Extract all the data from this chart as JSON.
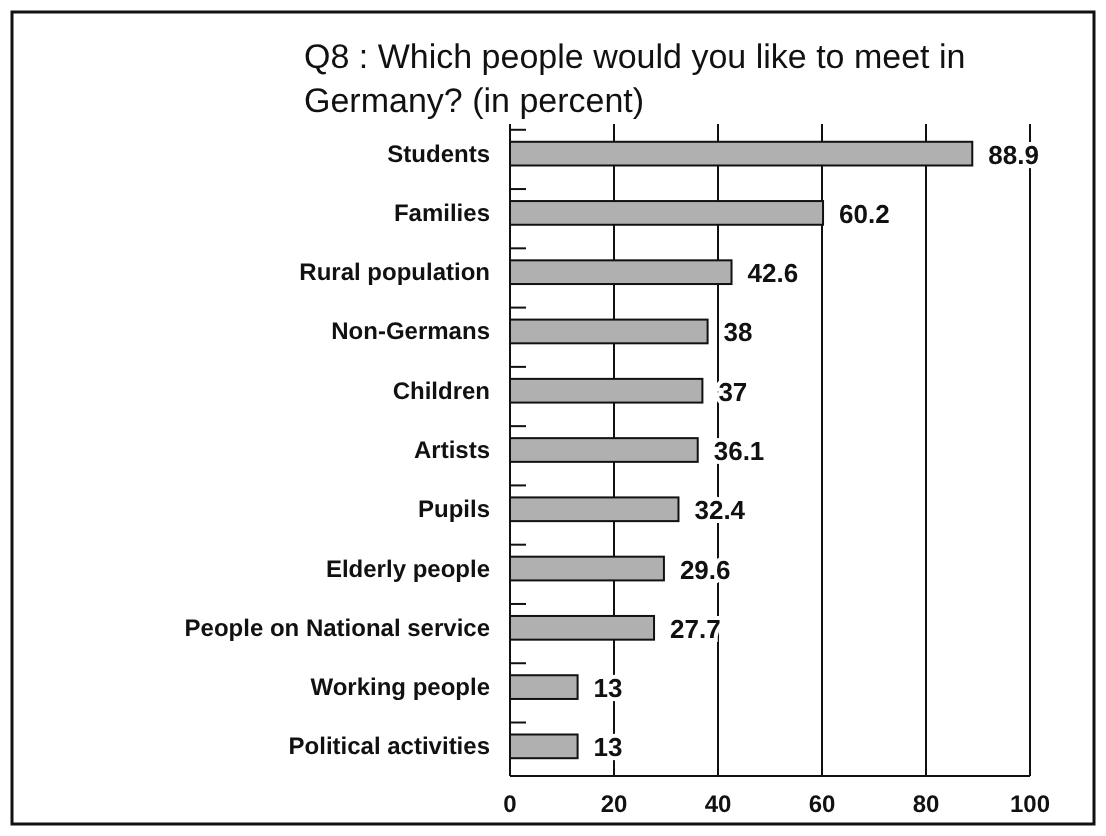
{
  "chart_data": {
    "type": "bar",
    "orientation": "horizontal",
    "title": "Q8 : Which people would you like to meet in Germany? (in percent)",
    "categories": [
      "Students",
      "Families",
      "Rural population",
      "Non-Germans",
      "Children",
      "Artists",
      "Pupils",
      "Elderly people",
      "People on National service",
      "Working people",
      "Political activities"
    ],
    "values": [
      88.9,
      60.2,
      42.6,
      38,
      37,
      36.1,
      32.4,
      29.6,
      27.7,
      13,
      13
    ],
    "color": "#b0b0b0",
    "xlim": [
      0,
      100
    ],
    "xticks": [
      0,
      20,
      40,
      60,
      80,
      100
    ],
    "grid": "x",
    "data_labels": true
  }
}
